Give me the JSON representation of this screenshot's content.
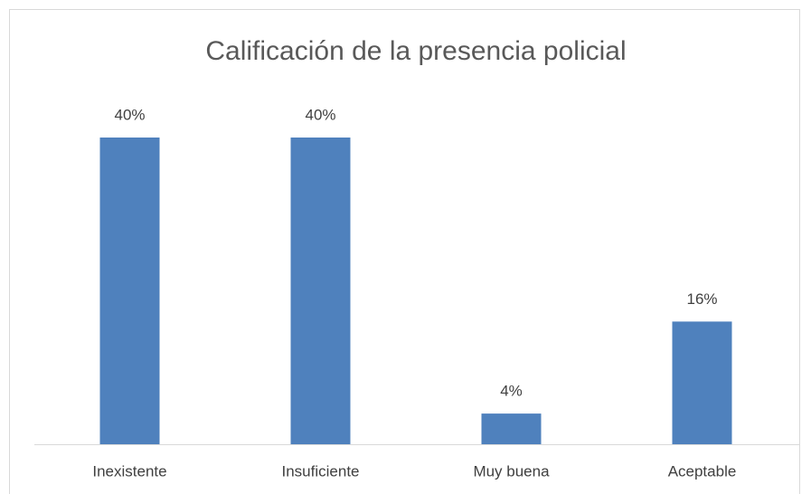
{
  "chart_data": {
    "type": "bar",
    "title": "Calificación de la presencia policial",
    "categories": [
      "Inexistente",
      "Insuficiente",
      "Muy buena",
      "Aceptable"
    ],
    "values": [
      40,
      40,
      4,
      16
    ],
    "value_labels": [
      "40%",
      "40%",
      "4%",
      "16%"
    ],
    "color": "#4f81bd"
  }
}
